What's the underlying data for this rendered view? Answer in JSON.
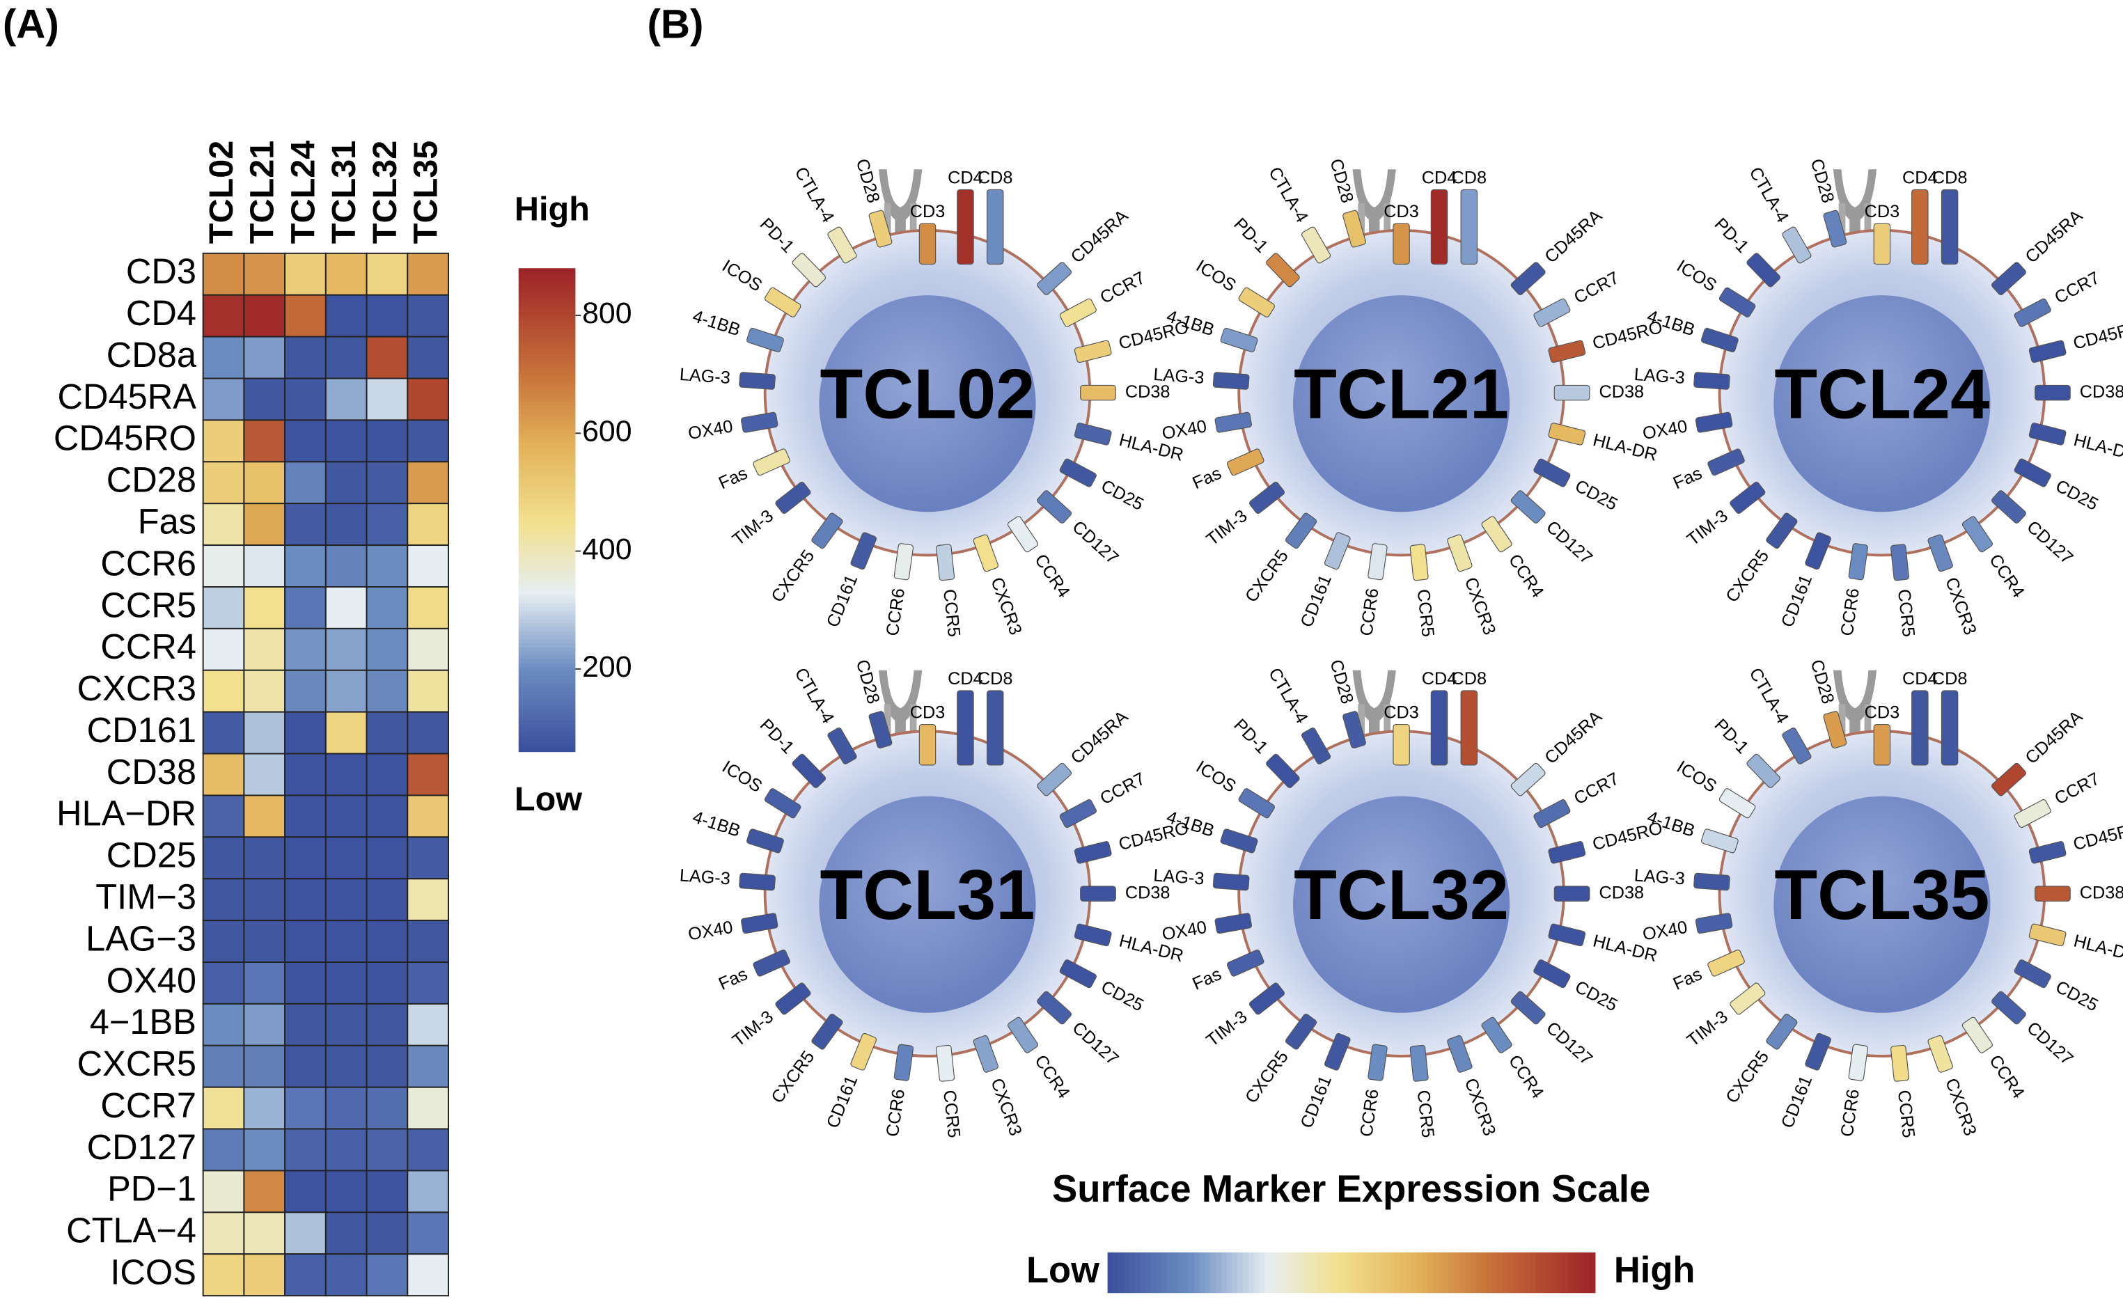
{
  "chart_data": [
    {
      "type": "heatmap",
      "panel_label": "(A)",
      "rows": [
        "CD3",
        "CD4",
        "CD8a",
        "CD45RA",
        "CD45RO",
        "CD28",
        "Fas",
        "CCR6",
        "CCR5",
        "CCR4",
        "CXCR3",
        "CD161",
        "CD38",
        "HLA−DR",
        "CD25",
        "TIM−3",
        "LAG−3",
        "OX40",
        "4−1BB",
        "CXCR5",
        "CCR7",
        "CD127",
        "PD−1",
        "CTLA−4",
        "ICOS"
      ],
      "columns": [
        "TCL02",
        "TCL21",
        "TCL24",
        "TCL31",
        "TCL32",
        "TCL35"
      ],
      "values": [
        [
          650,
          640,
          500,
          560,
          480,
          620
        ],
        [
          850,
          860,
          720,
          70,
          70,
          80
        ],
        [
          200,
          220,
          80,
          80,
          780,
          80
        ],
        [
          220,
          80,
          80,
          240,
          300,
          800
        ],
        [
          500,
          760,
          70,
          70,
          70,
          80
        ],
        [
          500,
          540,
          180,
          80,
          90,
          620
        ],
        [
          420,
          600,
          90,
          80,
          100,
          480
        ],
        [
          340,
          320,
          200,
          180,
          200,
          330
        ],
        [
          290,
          450,
          150,
          330,
          200,
          460
        ],
        [
          330,
          420,
          210,
          230,
          200,
          360
        ],
        [
          450,
          420,
          190,
          230,
          190,
          430
        ],
        [
          90,
          270,
          70,
          480,
          80,
          80
        ],
        [
          550,
          280,
          70,
          70,
          70,
          760
        ],
        [
          110,
          560,
          70,
          70,
          70,
          520
        ],
        [
          80,
          80,
          70,
          70,
          70,
          90
        ],
        [
          80,
          80,
          70,
          70,
          70,
          410
        ],
        [
          80,
          80,
          70,
          70,
          70,
          80
        ],
        [
          100,
          150,
          70,
          70,
          70,
          100
        ],
        [
          200,
          220,
          80,
          80,
          80,
          300
        ],
        [
          170,
          170,
          80,
          80,
          80,
          190
        ],
        [
          440,
          250,
          150,
          120,
          130,
          360
        ],
        [
          160,
          200,
          110,
          100,
          110,
          100
        ],
        [
          370,
          660,
          70,
          70,
          70,
          250
        ],
        [
          400,
          400,
          270,
          80,
          80,
          150
        ],
        [
          480,
          500,
          100,
          100,
          150,
          330
        ]
      ],
      "zlim": [
        60,
        880
      ],
      "colorbar_ticks": [
        200,
        400,
        600,
        800
      ],
      "colorbar_high": "High",
      "colorbar_low": "Low",
      "colorscale": [
        [
          60,
          "#3a4f9c"
        ],
        [
          200,
          "#6b8cc1"
        ],
        [
          330,
          "#e6eef2"
        ],
        [
          450,
          "#f2e08e"
        ],
        [
          580,
          "#e3b25a"
        ],
        [
          700,
          "#c8733a"
        ],
        [
          880,
          "#9c2227"
        ]
      ],
      "column_label_color": "#8e2b2b"
    },
    {
      "type": "cell-diagram",
      "panel_label": "(B)",
      "title": "Surface Marker Expression Scale",
      "scale_low": "Low",
      "scale_high": "High",
      "marker_labels": [
        "CD3",
        "CD4",
        "CD8",
        "CD45RA",
        "CD45RO",
        "CD28",
        "Fas",
        "CCR6",
        "CCR5",
        "CCR4",
        "CXCR3",
        "CD161",
        "CD38",
        "HLA-DR",
        "CD25",
        "TIM-3",
        "LAG-3",
        "OX40",
        "4-1BB",
        "CXCR5",
        "CCR7",
        "CD127",
        "PD-1",
        "CTLA-4",
        "ICOS"
      ]
    }
  ]
}
